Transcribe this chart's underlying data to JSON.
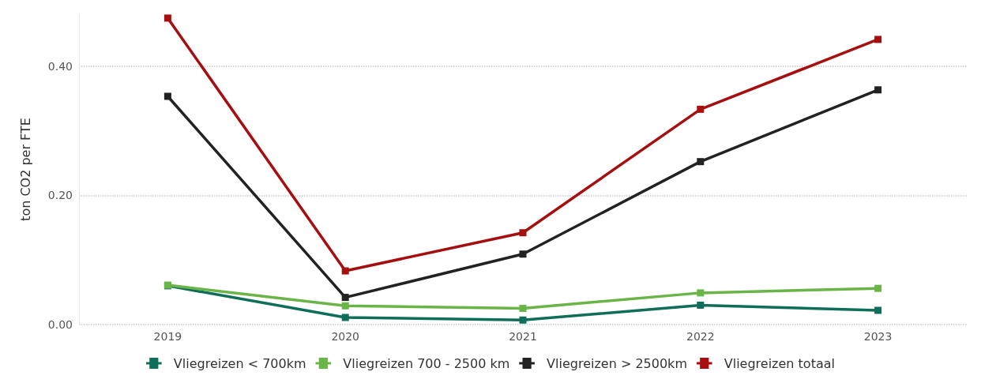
{
  "chart_data": {
    "type": "line",
    "ylabel": "ton CO2 per FTE",
    "categories": [
      "2019",
      "2020",
      "2021",
      "2022",
      "2023"
    ],
    "series": [
      {
        "name": "Vliegreizen < 700km",
        "color": "#0f6e5a",
        "values": [
          0.06,
          0.011,
          0.007,
          0.03,
          0.022
        ]
      },
      {
        "name": "Vliegreizen 700 - 2500 km",
        "color": "#6ab547",
        "values": [
          0.061,
          0.029,
          0.025,
          0.049,
          0.056
        ]
      },
      {
        "name": "Vliegreizen > 2500km",
        "color": "#222222",
        "values": [
          0.353,
          0.042,
          0.109,
          0.252,
          0.363
        ]
      },
      {
        "name": "Vliegreizen totaal",
        "color": "#a50f0f",
        "values": [
          0.474,
          0.083,
          0.142,
          0.333,
          0.441
        ]
      }
    ],
    "ylim": [
      0,
      0.48
    ],
    "yticks": [
      {
        "value": 0,
        "label": "0.00"
      },
      {
        "value": 0.2,
        "label": "0.20"
      },
      {
        "value": 0.4,
        "label": "0.40"
      }
    ],
    "grid": "y",
    "legend": "bottom",
    "marker": "square",
    "line_style": "solid"
  }
}
